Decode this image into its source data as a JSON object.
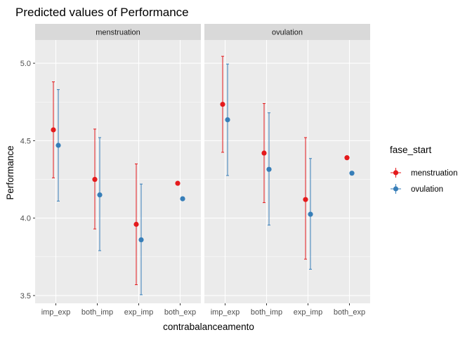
{
  "chart_data": {
    "type": "scatter",
    "subtype": "point-range",
    "title": "Predicted values of Performance",
    "xlabel": "contrabalanceamento",
    "ylabel": "Performance",
    "ylim": [
      3.45,
      5.15
    ],
    "yticks": [
      "3.5",
      "4.0",
      "4.5",
      "5.0"
    ],
    "ytick_values": [
      3.5,
      4.0,
      4.5,
      5.0
    ],
    "categories": [
      "imp_exp",
      "both_imp",
      "exp_imp",
      "both_exp"
    ],
    "grid": true,
    "legend_position": "right",
    "legend_title": "fase_start",
    "panels": [
      {
        "name": "menstruation",
        "series": [
          {
            "name": "menstruation",
            "color": "#E41A1C",
            "values": [
              4.57,
              4.25,
              3.96,
              4.225
            ],
            "lower": [
              4.26,
              3.93,
              3.57,
              null
            ],
            "upper": [
              4.88,
              4.575,
              4.35,
              null
            ]
          },
          {
            "name": "ovulation",
            "color": "#377EB8",
            "values": [
              4.47,
              4.15,
              3.86,
              4.125
            ],
            "lower": [
              4.11,
              3.79,
              3.505,
              null
            ],
            "upper": [
              4.83,
              4.52,
              4.22,
              null
            ]
          }
        ]
      },
      {
        "name": "ovulation",
        "series": [
          {
            "name": "menstruation",
            "color": "#E41A1C",
            "values": [
              4.735,
              4.42,
              4.12,
              4.39
            ],
            "lower": [
              4.425,
              4.1,
              3.735,
              null
            ],
            "upper": [
              5.045,
              4.74,
              4.52,
              null
            ]
          },
          {
            "name": "ovulation",
            "color": "#377EB8",
            "values": [
              4.635,
              4.315,
              4.025,
              4.29
            ],
            "lower": [
              4.275,
              3.955,
              3.67,
              null
            ],
            "upper": [
              4.995,
              4.68,
              4.385,
              null
            ]
          }
        ]
      }
    ]
  }
}
